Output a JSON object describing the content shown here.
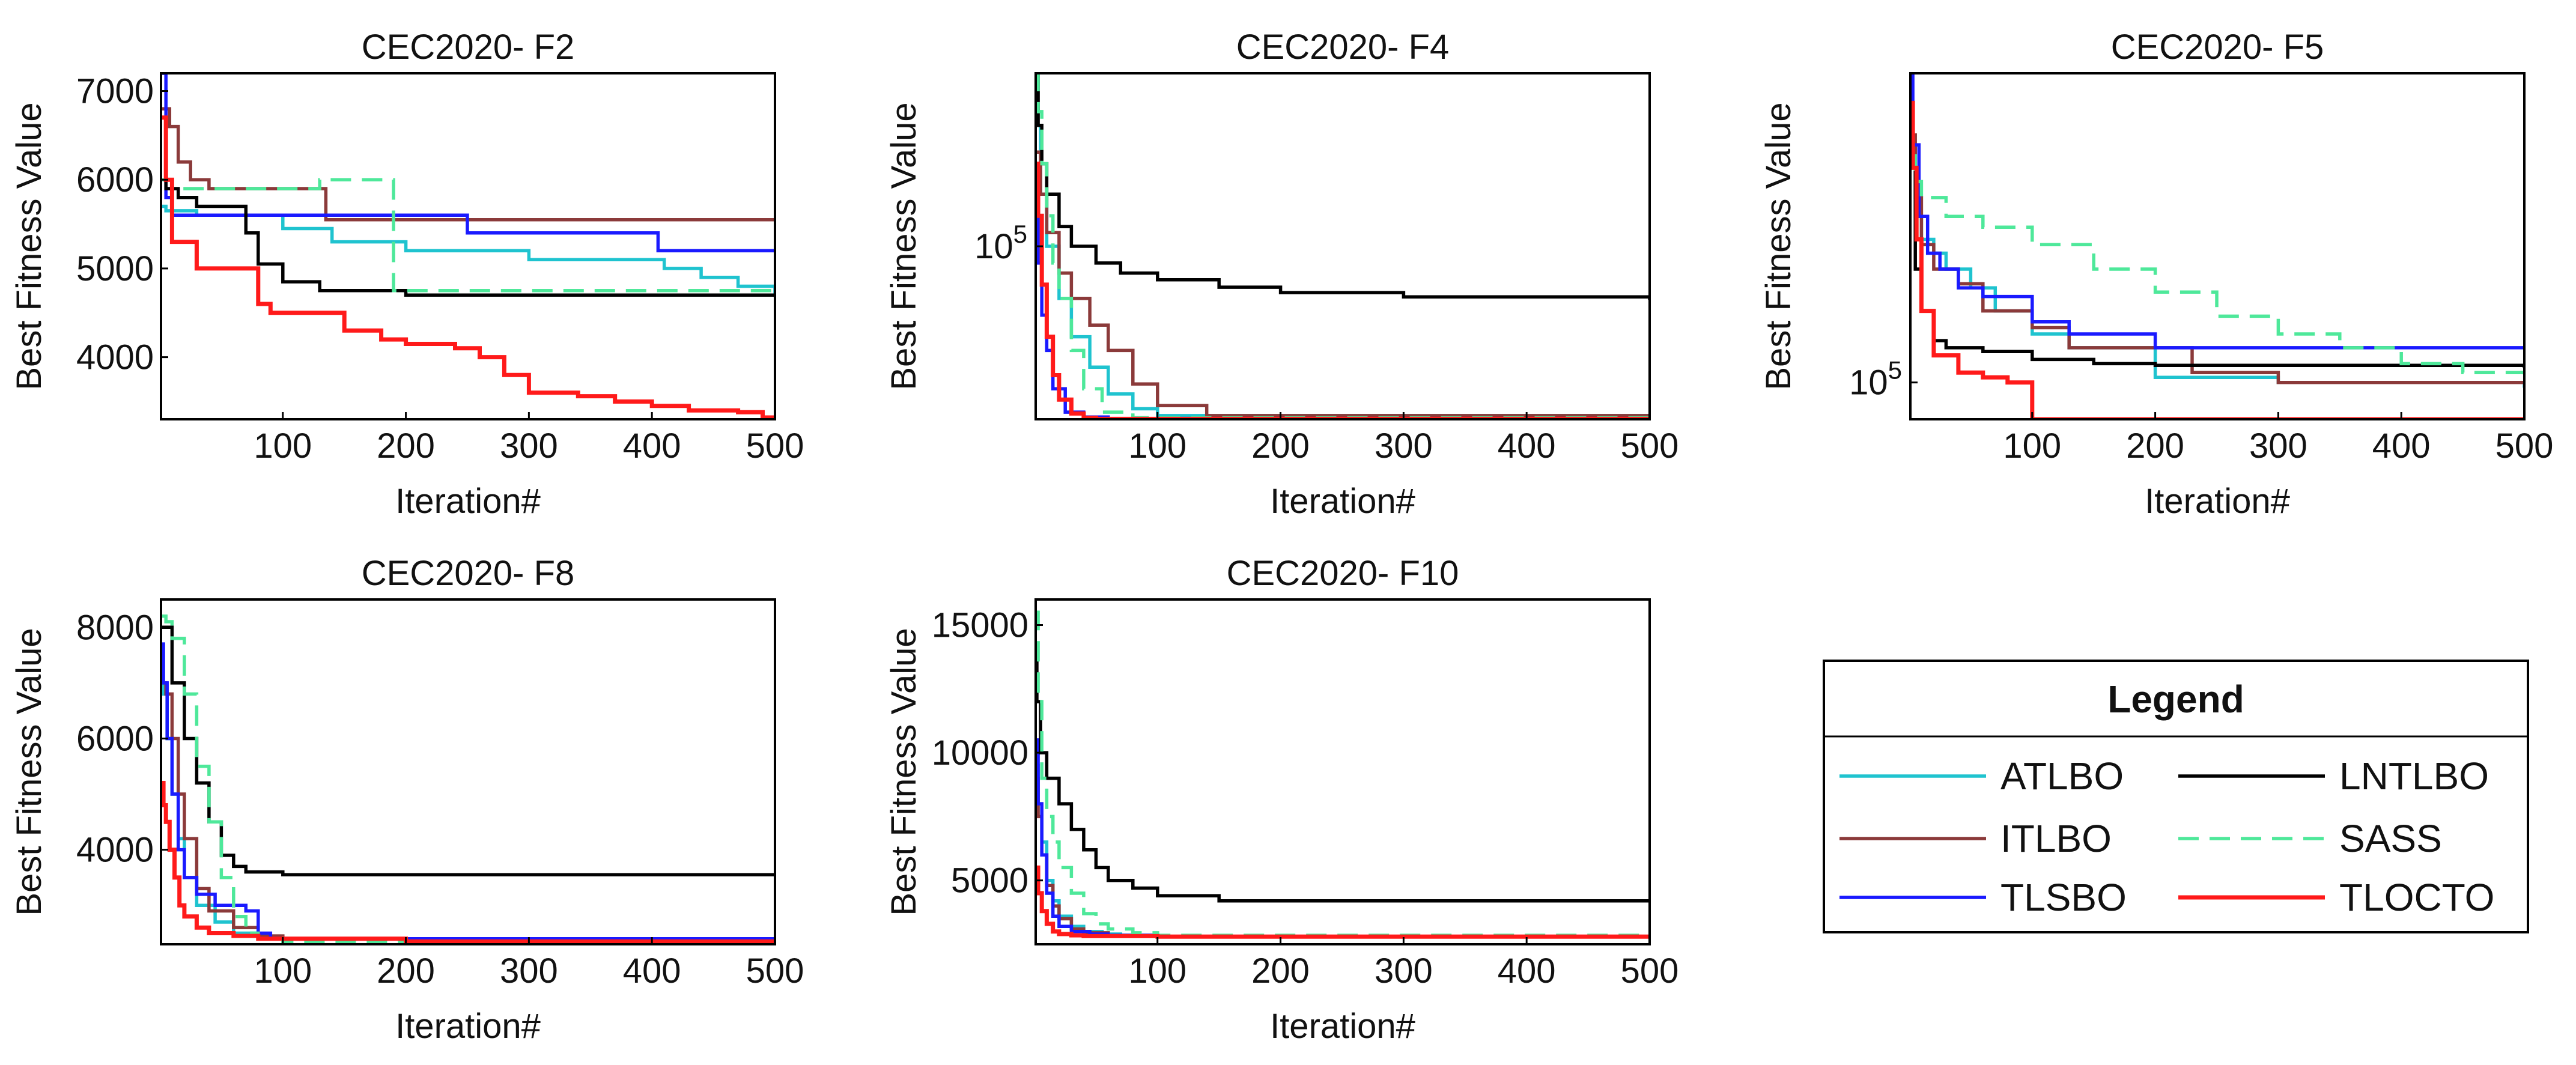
{
  "legend": {
    "title": "Legend",
    "entries": [
      {
        "name": "ATLBO",
        "color": "#1fc3cf",
        "dash": false
      },
      {
        "name": "LNTLBO",
        "color": "#000000",
        "dash": false
      },
      {
        "name": "ITLBO",
        "color": "#8b3a3a",
        "dash": false
      },
      {
        "name": "SASS",
        "color": "#4ee89a",
        "dash": true
      },
      {
        "name": "TLSBO",
        "color": "#1a1aff",
        "dash": false
      },
      {
        "name": "TLOCTO",
        "color": "#ff1a1a",
        "dash": false
      }
    ]
  },
  "chart_data": [
    {
      "type": "line",
      "title": "CEC2020- F2",
      "xlabel": "Iteration#",
      "ylabel": "Best Fitness Value",
      "xlim": [
        1,
        500
      ],
      "ylim": [
        3300,
        7200
      ],
      "yscale": "linear",
      "xticks": [
        100,
        200,
        300,
        400,
        500
      ],
      "yticks": [
        {
          "value": 4000,
          "label": "4000"
        },
        {
          "value": 5000,
          "label": "5000"
        },
        {
          "value": 6000,
          "label": "6000"
        },
        {
          "value": 7000,
          "label": "7000"
        }
      ],
      "series": [
        {
          "name": "ATLBO",
          "x": [
            1,
            5,
            30,
            60,
            100,
            140,
            200,
            300,
            410,
            440,
            470,
            500
          ],
          "y": [
            5700,
            5650,
            5600,
            5600,
            5450,
            5300,
            5200,
            5100,
            5000,
            4900,
            4800,
            4700
          ]
        },
        {
          "name": "ITLBO",
          "x": [
            1,
            8,
            15,
            25,
            40,
            130,
            135,
            500
          ],
          "y": [
            6800,
            6600,
            6200,
            6000,
            5900,
            5900,
            5550,
            5550
          ]
        },
        {
          "name": "TLSBO",
          "x": [
            1,
            5,
            10,
            100,
            245,
            250,
            400,
            405,
            500
          ],
          "y": [
            7200,
            5800,
            5600,
            5600,
            5600,
            5400,
            5400,
            5200,
            5200
          ]
        },
        {
          "name": "LNTLBO",
          "x": [
            1,
            5,
            15,
            30,
            70,
            80,
            100,
            130,
            200,
            500
          ],
          "y": [
            6000,
            5900,
            5800,
            5700,
            5400,
            5050,
            4850,
            4750,
            4700,
            4680
          ]
        },
        {
          "name": "SASS",
          "x": [
            1,
            10,
            40,
            130,
            185,
            190,
            200,
            500
          ],
          "y": [
            6000,
            5900,
            5900,
            6000,
            6000,
            4750,
            4750,
            4720
          ]
        },
        {
          "name": "TLOCTO",
          "x": [
            1,
            5,
            10,
            30,
            60,
            80,
            90,
            120,
            150,
            180,
            200,
            240,
            260,
            280,
            300,
            340,
            370,
            400,
            430,
            470,
            490,
            500
          ],
          "y": [
            6700,
            6000,
            5300,
            5000,
            5000,
            4600,
            4500,
            4500,
            4300,
            4200,
            4150,
            4100,
            4000,
            3800,
            3600,
            3560,
            3500,
            3450,
            3400,
            3380,
            3320,
            3310
          ]
        }
      ]
    },
    {
      "type": "line",
      "title": "CEC2020- F4",
      "xlabel": "Iteration#",
      "ylabel": "Best Fitness Value",
      "xlim": [
        1,
        500
      ],
      "ylim": [
        10000,
        1000000
      ],
      "yscale": "log",
      "xticks": [
        100,
        200,
        300,
        400,
        500
      ],
      "yticks": [
        {
          "value": 100000,
          "label": "10^5"
        }
      ],
      "series": [
        {
          "name": "ATLBO",
          "x": [
            1,
            5,
            10,
            20,
            30,
            45,
            60,
            80,
            100,
            500
          ],
          "y": [
            500000,
            200000,
            100000,
            50000,
            30000,
            20000,
            14000,
            11500,
            10500,
            10000
          ]
        },
        {
          "name": "ITLBO",
          "x": [
            1,
            5,
            10,
            20,
            30,
            45,
            60,
            80,
            100,
            140,
            500
          ],
          "y": [
            350000,
            200000,
            120000,
            70000,
            50000,
            35000,
            25000,
            16000,
            12000,
            10500,
            10000
          ]
        },
        {
          "name": "TLSBO",
          "x": [
            1,
            3,
            6,
            10,
            15,
            25,
            40,
            60,
            500
          ],
          "y": [
            150000,
            80000,
            40000,
            25000,
            15000,
            11000,
            10300,
            10050,
            10000
          ]
        },
        {
          "name": "LNTLBO",
          "x": [
            1,
            3,
            6,
            10,
            20,
            30,
            50,
            70,
            100,
            150,
            200,
            300,
            500
          ],
          "y": [
            1000000,
            500000,
            300000,
            200000,
            130000,
            100000,
            80000,
            70000,
            64000,
            58000,
            54000,
            51000,
            49000
          ]
        },
        {
          "name": "SASS",
          "x": [
            1,
            3,
            6,
            10,
            15,
            20,
            30,
            40,
            55,
            80,
            500
          ],
          "y": [
            1000000,
            600000,
            300000,
            150000,
            80000,
            50000,
            25000,
            15000,
            11000,
            10200,
            10000
          ]
        },
        {
          "name": "TLOCTO",
          "x": [
            1,
            3,
            6,
            10,
            15,
            20,
            30,
            40,
            50,
            500
          ],
          "y": [
            300000,
            150000,
            60000,
            30000,
            18000,
            13000,
            10800,
            10200,
            10050,
            10000
          ]
        }
      ]
    },
    {
      "type": "line",
      "title": "CEC2020- F5",
      "xlabel": "Iteration#",
      "ylabel": "Best Fitness Value",
      "xlim": [
        1,
        500
      ],
      "ylim": [
        70000,
        2000000
      ],
      "yscale": "log",
      "xticks": [
        100,
        200,
        300,
        400,
        500
      ],
      "yticks": [
        {
          "value": 100000,
          "label": "10^5"
        }
      ],
      "series": [
        {
          "name": "ATLBO",
          "x": [
            1,
            5,
            10,
            20,
            30,
            50,
            70,
            100,
            130,
            200,
            300,
            500
          ],
          "y": [
            1000000,
            500000,
            400000,
            350000,
            300000,
            250000,
            200000,
            160000,
            140000,
            105000,
            100000,
            95000
          ]
        },
        {
          "name": "ITLBO",
          "x": [
            1,
            5,
            10,
            20,
            40,
            60,
            100,
            130,
            230,
            300,
            500
          ],
          "y": [
            1100000,
            600000,
            380000,
            300000,
            260000,
            200000,
            170000,
            140000,
            110000,
            100000,
            100000
          ]
        },
        {
          "name": "TLSBO",
          "x": [
            1,
            3,
            8,
            15,
            25,
            40,
            60,
            100,
            130,
            200,
            500
          ],
          "y": [
            2000000,
            1000000,
            500000,
            350000,
            300000,
            250000,
            230000,
            180000,
            160000,
            140000,
            140000
          ]
        },
        {
          "name": "LNTLBO",
          "x": [
            1,
            5,
            10,
            20,
            30,
            60,
            100,
            150,
            200,
            500
          ],
          "y": [
            800000,
            300000,
            200000,
            150000,
            140000,
            135000,
            125000,
            120000,
            118000,
            115000
          ]
        },
        {
          "name": "SASS",
          "x": [
            1,
            5,
            10,
            30,
            60,
            100,
            150,
            200,
            250,
            300,
            350,
            400,
            450,
            500
          ],
          "y": [
            900000,
            700000,
            600000,
            500000,
            450000,
            380000,
            300000,
            240000,
            190000,
            160000,
            140000,
            120000,
            110000,
            105000
          ]
        },
        {
          "name": "TLOCTO",
          "x": [
            1,
            3,
            6,
            10,
            20,
            40,
            60,
            80,
            95,
            100,
            500
          ],
          "y": [
            1500000,
            800000,
            400000,
            200000,
            130000,
            110000,
            105000,
            100000,
            100000,
            70000,
            70000
          ]
        }
      ]
    },
    {
      "type": "line",
      "title": "CEC2020- F8",
      "xlabel": "Iteration#",
      "ylabel": "Best Fitness Value",
      "xlim": [
        1,
        500
      ],
      "ylim": [
        2300,
        8500
      ],
      "yscale": "linear",
      "xticks": [
        100,
        200,
        300,
        400,
        500
      ],
      "yticks": [
        {
          "value": 4000,
          "label": "4000"
        },
        {
          "value": 6000,
          "label": "6000"
        },
        {
          "value": 8000,
          "label": "8000"
        }
      ],
      "series": [
        {
          "name": "ATLBO",
          "x": [
            1,
            3,
            6,
            10,
            15,
            20,
            30,
            45,
            60,
            80,
            500
          ],
          "y": [
            7000,
            6800,
            6000,
            5000,
            4200,
            3500,
            3000,
            2700,
            2500,
            2400,
            2400
          ]
        },
        {
          "name": "ITLBO",
          "x": [
            1,
            5,
            10,
            15,
            20,
            30,
            40,
            60,
            80,
            100,
            500
          ],
          "y": [
            7000,
            6800,
            6000,
            5000,
            4200,
            3300,
            2900,
            2600,
            2450,
            2400,
            2400
          ]
        },
        {
          "name": "TLSBO",
          "x": [
            1,
            3,
            6,
            10,
            15,
            20,
            30,
            45,
            55,
            70,
            80,
            90,
            500
          ],
          "y": [
            7700,
            7000,
            6000,
            5000,
            4000,
            3500,
            3200,
            3000,
            3000,
            2900,
            2500,
            2400,
            2400
          ]
        },
        {
          "name": "LNTLBO",
          "x": [
            1,
            5,
            10,
            20,
            30,
            40,
            50,
            60,
            70,
            100,
            150,
            500
          ],
          "y": [
            8000,
            8000,
            7000,
            6000,
            5200,
            4500,
            3900,
            3700,
            3600,
            3550,
            3550,
            3550
          ]
        },
        {
          "name": "SASS",
          "x": [
            1,
            5,
            10,
            20,
            30,
            40,
            50,
            60,
            70,
            80,
            100,
            500
          ],
          "y": [
            8200,
            8100,
            7800,
            6800,
            5500,
            4500,
            3500,
            2800,
            2500,
            2400,
            2350,
            2350
          ]
        },
        {
          "name": "TLOCTO",
          "x": [
            1,
            3,
            5,
            8,
            12,
            16,
            20,
            30,
            40,
            60,
            80,
            200,
            500
          ],
          "y": [
            5200,
            4800,
            4500,
            4000,
            3500,
            3000,
            2800,
            2600,
            2500,
            2450,
            2400,
            2350,
            2350
          ]
        }
      ]
    },
    {
      "type": "line",
      "title": "CEC2020- F10",
      "xlabel": "Iteration#",
      "ylabel": "Best Fitness Value",
      "xlim": [
        1,
        500
      ],
      "ylim": [
        2500,
        16000
      ],
      "yscale": "linear",
      "xticks": [
        100,
        200,
        300,
        400,
        500
      ],
      "yticks": [
        {
          "value": 5000,
          "label": "5000"
        },
        {
          "value": 10000,
          "label": "10000"
        },
        {
          "value": 15000,
          "label": "15000"
        }
      ],
      "series": [
        {
          "name": "ATLBO",
          "x": [
            1,
            3,
            6,
            10,
            15,
            20,
            30,
            40,
            55,
            70,
            100,
            500
          ],
          "y": [
            9500,
            8000,
            6500,
            5000,
            4200,
            3600,
            3200,
            3000,
            2900,
            2850,
            2800,
            2800
          ]
        },
        {
          "name": "ITLBO",
          "x": [
            1,
            3,
            6,
            10,
            15,
            20,
            30,
            40,
            60,
            100,
            500
          ],
          "y": [
            9000,
            7500,
            6000,
            4800,
            4000,
            3500,
            3100,
            2950,
            2850,
            2800,
            2800
          ]
        },
        {
          "name": "TLSBO",
          "x": [
            1,
            3,
            6,
            10,
            15,
            20,
            30,
            45,
            60,
            100,
            500
          ],
          "y": [
            10500,
            8000,
            6000,
            4500,
            3600,
            3200,
            3000,
            2900,
            2850,
            2800,
            2800
          ]
        },
        {
          "name": "LNTLBO",
          "x": [
            1,
            2,
            5,
            10,
            20,
            30,
            40,
            50,
            60,
            80,
            100,
            150,
            500
          ],
          "y": [
            14000,
            12000,
            10000,
            9000,
            8000,
            7000,
            6200,
            5500,
            5000,
            4700,
            4400,
            4200,
            4200
          ]
        },
        {
          "name": "SASS",
          "x": [
            1,
            3,
            6,
            10,
            15,
            20,
            30,
            40,
            50,
            60,
            80,
            100,
            500
          ],
          "y": [
            15500,
            12000,
            9000,
            7500,
            6500,
            5500,
            4500,
            3700,
            3300,
            3100,
            2950,
            2850,
            2800
          ]
        },
        {
          "name": "TLOCTO",
          "x": [
            1,
            3,
            6,
            10,
            15,
            20,
            30,
            40,
            100,
            500
          ],
          "y": [
            5500,
            4500,
            3800,
            3300,
            3000,
            2900,
            2850,
            2820,
            2800,
            2800
          ]
        }
      ]
    }
  ]
}
